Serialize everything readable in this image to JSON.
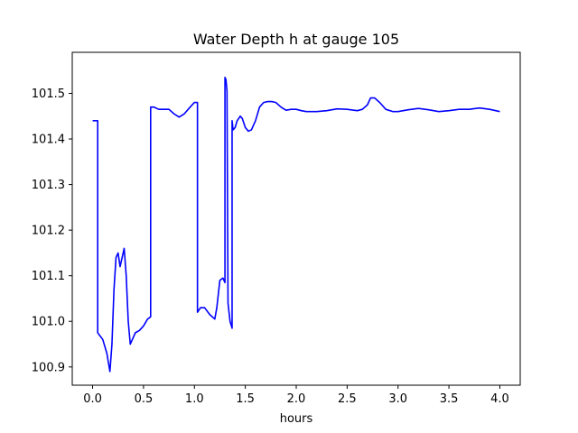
{
  "chart_data": {
    "type": "line",
    "title": "Water Depth h at gauge 105",
    "xlabel": "hours",
    "ylabel": "",
    "xlim": [
      -0.2,
      4.2
    ],
    "ylim": [
      100.86,
      101.59
    ],
    "xticks": [
      0.0,
      0.5,
      1.0,
      1.5,
      2.0,
      2.5,
      3.0,
      3.5,
      4.0
    ],
    "xtick_labels": [
      "0.0",
      "0.5",
      "1.0",
      "1.5",
      "2.0",
      "2.5",
      "3.0",
      "3.5",
      "4.0"
    ],
    "yticks": [
      100.9,
      101.0,
      101.1,
      101.2,
      101.3,
      101.4,
      101.5
    ],
    "ytick_labels": [
      "100.9",
      "101.0",
      "101.1",
      "101.2",
      "101.3",
      "101.4",
      "101.5"
    ],
    "grid": false,
    "series": [
      {
        "color": "#0000ff",
        "x": [
          0.0,
          0.02,
          0.05,
          0.05,
          0.1,
          0.14,
          0.17,
          0.19,
          0.21,
          0.23,
          0.25,
          0.27,
          0.29,
          0.31,
          0.33,
          0.35,
          0.37,
          0.39,
          0.42,
          0.46,
          0.5,
          0.54,
          0.57,
          0.57,
          0.6,
          0.65,
          0.7,
          0.75,
          0.8,
          0.85,
          0.9,
          0.95,
          1.0,
          1.03,
          1.03,
          1.06,
          1.1,
          1.15,
          1.2,
          1.22,
          1.25,
          1.28,
          1.3,
          1.3,
          1.31,
          1.32,
          1.33,
          1.33,
          1.35,
          1.37,
          1.37,
          1.38,
          1.4,
          1.42,
          1.45,
          1.47,
          1.5,
          1.53,
          1.56,
          1.6,
          1.64,
          1.68,
          1.72,
          1.76,
          1.8,
          1.85,
          1.9,
          1.95,
          2.0,
          2.05,
          2.1,
          2.15,
          2.2,
          2.3,
          2.4,
          2.5,
          2.6,
          2.65,
          2.7,
          2.73,
          2.77,
          2.82,
          2.88,
          2.95,
          3.0,
          3.1,
          3.2,
          3.3,
          3.4,
          3.5,
          3.6,
          3.7,
          3.8,
          3.9,
          4.0
        ],
        "y": [
          101.44,
          101.44,
          101.44,
          100.975,
          100.96,
          100.93,
          100.89,
          100.95,
          101.07,
          101.14,
          101.15,
          101.12,
          101.14,
          101.16,
          101.1,
          101.0,
          100.95,
          100.96,
          100.975,
          100.98,
          100.99,
          101.005,
          101.01,
          101.47,
          101.47,
          101.465,
          101.465,
          101.465,
          101.455,
          101.448,
          101.455,
          101.468,
          101.48,
          101.48,
          101.02,
          101.03,
          101.03,
          101.015,
          101.005,
          101.03,
          101.09,
          101.095,
          101.085,
          101.535,
          101.53,
          101.505,
          101.04,
          101.04,
          101.0,
          100.985,
          101.44,
          101.42,
          101.425,
          101.44,
          101.45,
          101.445,
          101.425,
          101.417,
          101.42,
          101.44,
          101.47,
          101.48,
          101.482,
          101.482,
          101.48,
          101.47,
          101.463,
          101.465,
          101.465,
          101.462,
          101.46,
          101.46,
          101.46,
          101.462,
          101.466,
          101.465,
          101.462,
          101.465,
          101.475,
          101.49,
          101.49,
          101.48,
          101.465,
          101.46,
          101.46,
          101.464,
          101.467,
          101.464,
          101.46,
          101.462,
          101.465,
          101.465,
          101.468,
          101.465,
          101.46
        ]
      }
    ]
  }
}
